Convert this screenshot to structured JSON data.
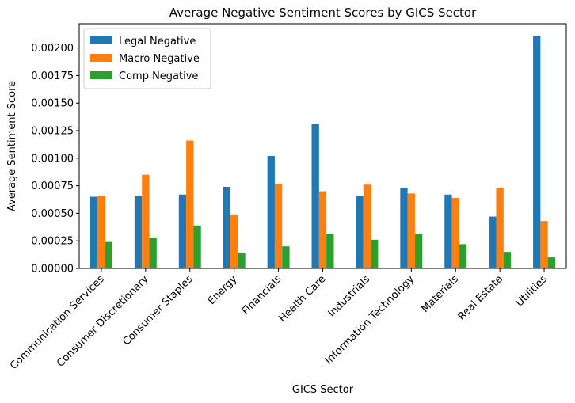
{
  "chart_data": {
    "type": "bar",
    "title": "Average Negative Sentiment Scores by GICS Sector",
    "xlabel": "GICS Sector",
    "ylabel": "Average Sentiment Score",
    "ylim": [
      0,
      0.00222
    ],
    "yticks": [
      "0.00000",
      "0.00025",
      "0.00050",
      "0.00075",
      "0.00100",
      "0.00125",
      "0.00150",
      "0.00175",
      "0.00200"
    ],
    "grid": false,
    "legend_position": "top-left",
    "categories": [
      "Communication Services",
      "Consumer Discretionary",
      "Consumer Staples",
      "Energy",
      "Financials",
      "Health Care",
      "Industrials",
      "Information Technology",
      "Materials",
      "Real Estate",
      "Utilities"
    ],
    "series": [
      {
        "name": "Legal Negative",
        "color": "#1f77b4",
        "values": [
          0.00065,
          0.00066,
          0.00067,
          0.00074,
          0.00102,
          0.00131,
          0.00066,
          0.00073,
          0.00067,
          0.00047,
          0.00211
        ]
      },
      {
        "name": "Macro Negative",
        "color": "#ff7f0e",
        "values": [
          0.00066,
          0.00085,
          0.00116,
          0.00049,
          0.00077,
          0.0007,
          0.00076,
          0.00068,
          0.00064,
          0.00073,
          0.00043
        ]
      },
      {
        "name": "Comp Negative",
        "color": "#2ca02c",
        "values": [
          0.00024,
          0.00028,
          0.00039,
          0.00014,
          0.0002,
          0.00031,
          0.00026,
          0.00031,
          0.00022,
          0.00015,
          0.0001
        ]
      }
    ]
  }
}
